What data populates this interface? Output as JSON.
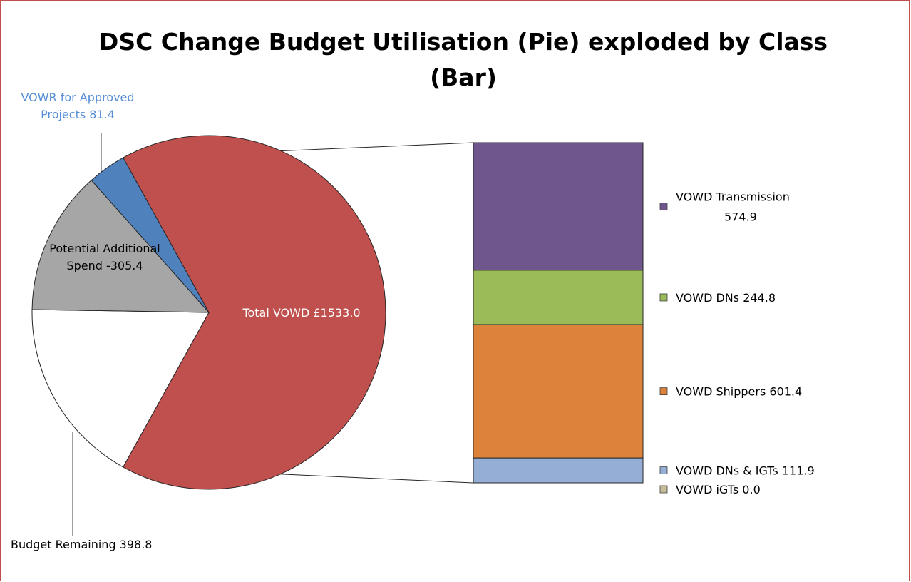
{
  "chart_data": {
    "type": "pie",
    "title": "DSC Change Budget Utilisation (Pie) exploded by Class\n(Bar)",
    "unit_prefix": "£",
    "pie_slices": [
      {
        "label": "Total VOWD £1533.0",
        "value": 1533.0,
        "color": "#c0504d",
        "label_color": "#ffffff"
      },
      {
        "label": "Budget Remaining 398.8",
        "value": 398.8,
        "color": "#ffffff",
        "label_color": "#000000"
      },
      {
        "label": "Potential Additional Spend -305.4",
        "value": 305.4,
        "color": "#a6a6a6",
        "label_color": "#000000"
      },
      {
        "label": "VOWR for Approved Projects 81.4",
        "value": 81.4,
        "color": "#4f81bd",
        "label_color": "#558ed5"
      }
    ],
    "bar_breakdown": {
      "of_slice": "Total VOWD £1533.0",
      "series": [
        {
          "name": "VOWD Transmission 574.9",
          "value": 574.9,
          "color": "#6f578e"
        },
        {
          "name": "VOWD DNs 244.8",
          "value": 244.8,
          "color": "#9bbb59"
        },
        {
          "name": "VOWD Shippers 601.4",
          "value": 601.4,
          "color": "#dd823b"
        },
        {
          "name": "VOWD DNs & IGTs 111.9",
          "value": 111.9,
          "color": "#95aed5"
        },
        {
          "name": "VOWD iGTs 0.0",
          "value": 0.0,
          "color": "#c4bd97"
        }
      ]
    },
    "legend_position": "right"
  }
}
